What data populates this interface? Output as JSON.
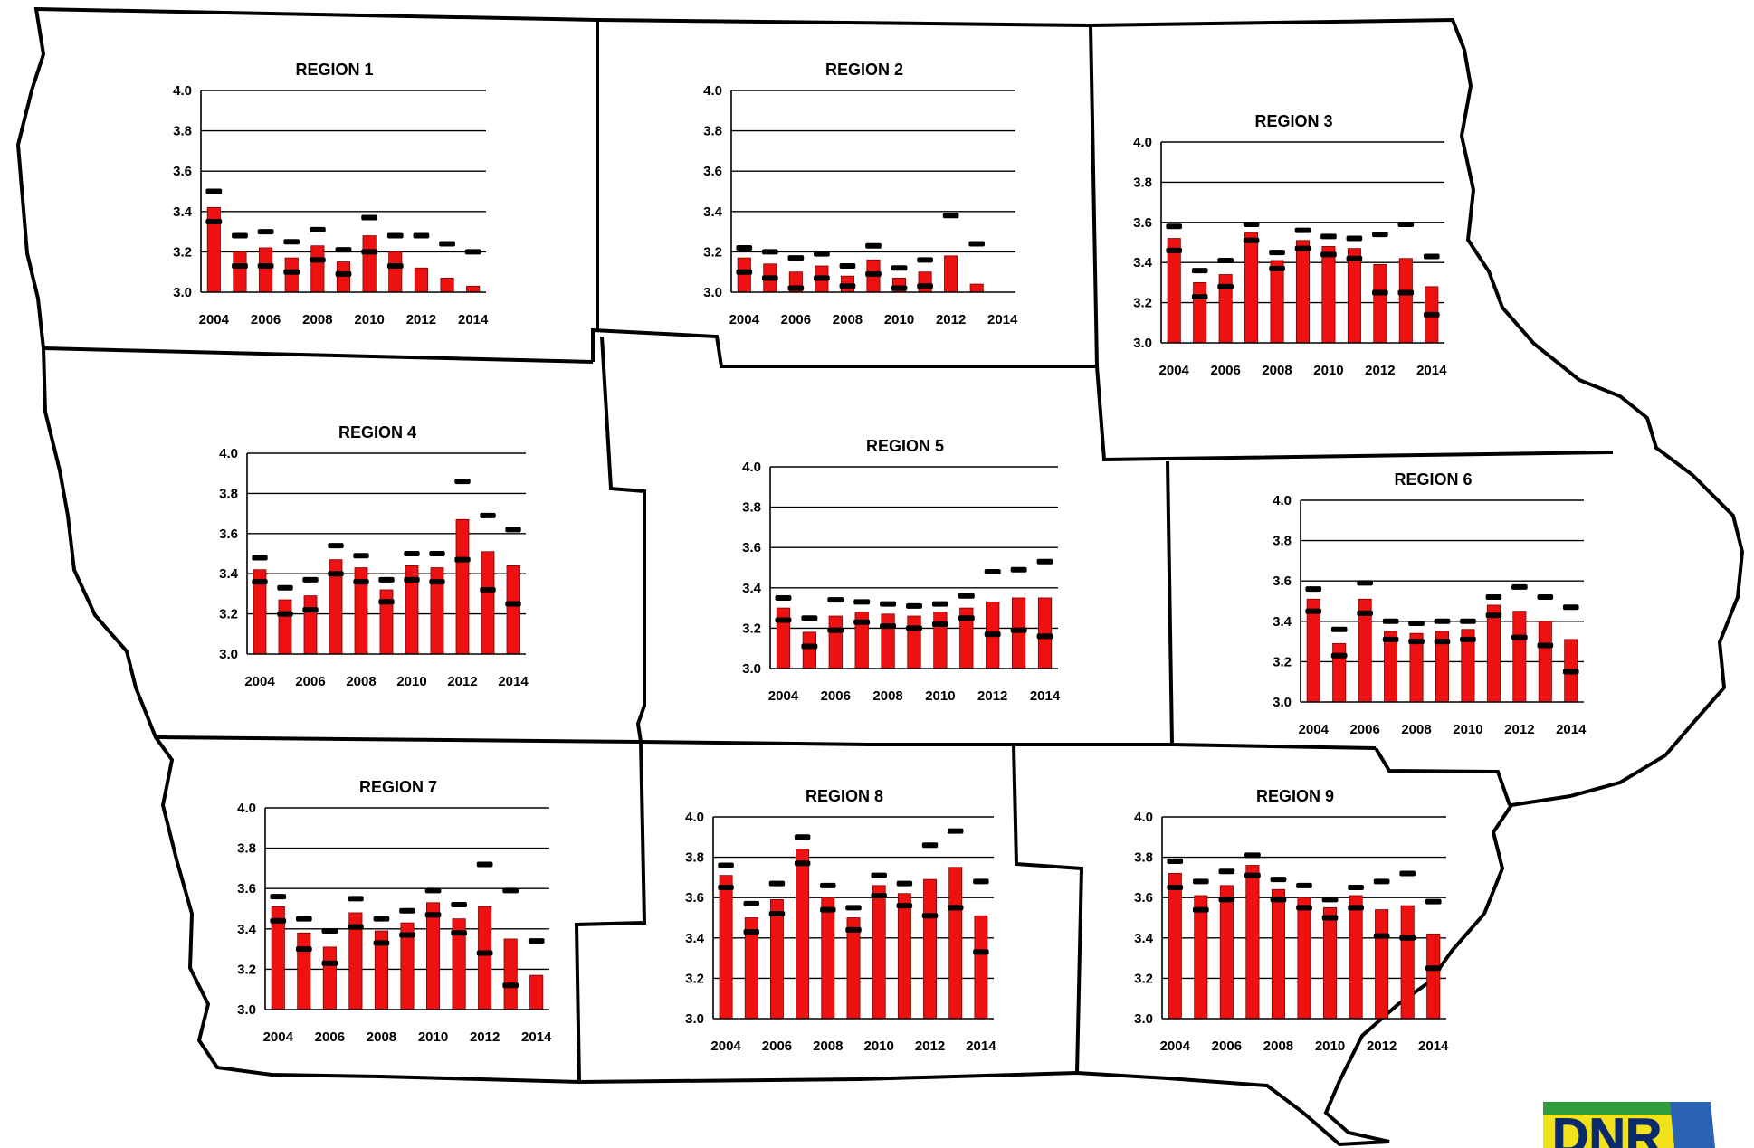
{
  "logo": {
    "text": "DNR",
    "colors": {
      "green": "#2e9e3a",
      "yellow": "#f2e21a",
      "blue": "#2a63b4"
    }
  },
  "colors": {
    "bar": "#ee1111",
    "bar_edge": "#7a0000",
    "marker": "#000000",
    "border": "#000000",
    "grid": "#000000"
  },
  "chart_data": [
    {
      "type": "bar",
      "title": "REGION 1",
      "categories": [
        "2004",
        "2005",
        "2006",
        "2007",
        "2008",
        "2009",
        "2010",
        "2011",
        "2012",
        "2013",
        "2014"
      ],
      "series": [
        {
          "kind": "bar",
          "values": [
            3.42,
            3.2,
            3.22,
            3.17,
            3.23,
            3.15,
            3.28,
            3.2,
            3.12,
            3.07,
            3.03
          ]
        },
        {
          "kind": "upper-marker",
          "values": [
            3.5,
            3.28,
            3.3,
            3.25,
            3.31,
            3.21,
            3.37,
            3.28,
            3.28,
            3.24,
            3.2
          ]
        },
        {
          "kind": "lower-marker",
          "values": [
            3.35,
            3.13,
            3.13,
            3.1,
            3.16,
            3.09,
            3.2,
            3.13,
            null,
            null,
            null
          ]
        }
      ],
      "ylim": [
        3.0,
        4.0
      ],
      "yticks": [
        "3.0",
        "3.2",
        "3.4",
        "3.6",
        "3.8",
        "4.0"
      ],
      "xticks": [
        "2004",
        "2006",
        "2008",
        "2010",
        "2012",
        "2014"
      ],
      "grid": true
    },
    {
      "type": "bar",
      "title": "REGION 2",
      "categories": [
        "2004",
        "2005",
        "2006",
        "2007",
        "2008",
        "2009",
        "2010",
        "2011",
        "2012",
        "2013",
        "2014"
      ],
      "series": [
        {
          "kind": "bar",
          "values": [
            3.17,
            3.14,
            3.1,
            3.13,
            3.08,
            3.16,
            3.07,
            3.1,
            3.18,
            3.04,
            null
          ]
        },
        {
          "kind": "upper-marker",
          "values": [
            3.22,
            3.2,
            3.17,
            3.19,
            3.13,
            3.23,
            3.12,
            3.16,
            3.38,
            3.24,
            null
          ]
        },
        {
          "kind": "lower-marker",
          "values": [
            3.1,
            3.07,
            3.02,
            3.07,
            3.03,
            3.09,
            3.02,
            3.03,
            null,
            null,
            null
          ]
        }
      ],
      "ylim": [
        3.0,
        4.0
      ],
      "yticks": [
        "3.0",
        "3.2",
        "3.4",
        "3.6",
        "3.8",
        "4.0"
      ],
      "xticks": [
        "2004",
        "2006",
        "2008",
        "2010",
        "2012",
        "2014"
      ],
      "grid": true
    },
    {
      "type": "bar",
      "title": "REGION 3",
      "categories": [
        "2004",
        "2005",
        "2006",
        "2007",
        "2008",
        "2009",
        "2010",
        "2011",
        "2012",
        "2013",
        "2014"
      ],
      "series": [
        {
          "kind": "bar",
          "values": [
            3.52,
            3.3,
            3.34,
            3.55,
            3.41,
            3.51,
            3.48,
            3.47,
            3.39,
            3.42,
            3.28
          ]
        },
        {
          "kind": "upper-marker",
          "values": [
            3.58,
            3.36,
            3.41,
            3.59,
            3.45,
            3.56,
            3.53,
            3.52,
            3.54,
            3.59,
            3.43
          ]
        },
        {
          "kind": "lower-marker",
          "values": [
            3.46,
            3.23,
            3.28,
            3.51,
            3.37,
            3.47,
            3.44,
            3.42,
            3.25,
            3.25,
            3.14
          ]
        }
      ],
      "ylim": [
        3.0,
        4.0
      ],
      "yticks": [
        "3.0",
        "3.2",
        "3.4",
        "3.6",
        "3.8",
        "4.0"
      ],
      "xticks": [
        "2004",
        "2006",
        "2008",
        "2010",
        "2012",
        "2014"
      ],
      "grid": true
    },
    {
      "type": "bar",
      "title": "REGION 4",
      "categories": [
        "2004",
        "2005",
        "2006",
        "2007",
        "2008",
        "2009",
        "2010",
        "2011",
        "2012",
        "2013",
        "2014"
      ],
      "series": [
        {
          "kind": "bar",
          "values": [
            3.42,
            3.27,
            3.29,
            3.47,
            3.43,
            3.32,
            3.44,
            3.43,
            3.67,
            3.51,
            3.44
          ]
        },
        {
          "kind": "upper-marker",
          "values": [
            3.48,
            3.33,
            3.37,
            3.54,
            3.49,
            3.37,
            3.5,
            3.5,
            3.86,
            3.69,
            3.62
          ]
        },
        {
          "kind": "lower-marker",
          "values": [
            3.36,
            3.2,
            3.22,
            3.4,
            3.36,
            3.26,
            3.37,
            3.36,
            3.47,
            3.32,
            3.25
          ]
        }
      ],
      "ylim": [
        3.0,
        4.0
      ],
      "yticks": [
        "3.0",
        "3.2",
        "3.4",
        "3.6",
        "3.8",
        "4.0"
      ],
      "xticks": [
        "2004",
        "2006",
        "2008",
        "2010",
        "2012",
        "2014"
      ],
      "grid": true
    },
    {
      "type": "bar",
      "title": "REGION 5",
      "categories": [
        "2004",
        "2005",
        "2006",
        "2007",
        "2008",
        "2009",
        "2010",
        "2011",
        "2012",
        "2013",
        "2014"
      ],
      "series": [
        {
          "kind": "bar",
          "values": [
            3.3,
            3.18,
            3.26,
            3.28,
            3.27,
            3.26,
            3.28,
            3.3,
            3.33,
            3.35,
            3.35
          ]
        },
        {
          "kind": "upper-marker",
          "values": [
            3.35,
            3.25,
            3.34,
            3.33,
            3.32,
            3.31,
            3.32,
            3.36,
            3.48,
            3.49,
            3.53
          ]
        },
        {
          "kind": "lower-marker",
          "values": [
            3.24,
            3.11,
            3.19,
            3.23,
            3.21,
            3.2,
            3.22,
            3.25,
            3.17,
            3.19,
            3.16
          ]
        }
      ],
      "ylim": [
        3.0,
        4.0
      ],
      "yticks": [
        "3.0",
        "3.2",
        "3.4",
        "3.6",
        "3.8",
        "4.0"
      ],
      "xticks": [
        "2004",
        "2006",
        "2008",
        "2010",
        "2012",
        "2014"
      ],
      "grid": true
    },
    {
      "type": "bar",
      "title": "REGION 6",
      "categories": [
        "2004",
        "2005",
        "2006",
        "2007",
        "2008",
        "2009",
        "2010",
        "2011",
        "2012",
        "2013",
        "2014"
      ],
      "series": [
        {
          "kind": "bar",
          "values": [
            3.51,
            3.29,
            3.51,
            3.35,
            3.34,
            3.35,
            3.36,
            3.48,
            3.45,
            3.4,
            3.31
          ]
        },
        {
          "kind": "upper-marker",
          "values": [
            3.56,
            3.36,
            3.59,
            3.4,
            3.39,
            3.4,
            3.4,
            3.52,
            3.57,
            3.52,
            3.47
          ]
        },
        {
          "kind": "lower-marker",
          "values": [
            3.45,
            3.23,
            3.44,
            3.31,
            3.3,
            3.3,
            3.31,
            3.43,
            3.32,
            3.28,
            3.15
          ]
        }
      ],
      "ylim": [
        3.0,
        4.0
      ],
      "yticks": [
        "3.0",
        "3.2",
        "3.4",
        "3.6",
        "3.8",
        "4.0"
      ],
      "xticks": [
        "2004",
        "2006",
        "2008",
        "2010",
        "2012",
        "2014"
      ],
      "grid": true
    },
    {
      "type": "bar",
      "title": "REGION 7",
      "categories": [
        "2004",
        "2005",
        "2006",
        "2007",
        "2008",
        "2009",
        "2010",
        "2011",
        "2012",
        "2013",
        "2014"
      ],
      "series": [
        {
          "kind": "bar",
          "values": [
            3.51,
            3.38,
            3.31,
            3.48,
            3.39,
            3.43,
            3.53,
            3.45,
            3.51,
            3.35,
            3.17
          ]
        },
        {
          "kind": "upper-marker",
          "values": [
            3.56,
            3.45,
            3.39,
            3.55,
            3.45,
            3.49,
            3.59,
            3.52,
            3.72,
            3.59,
            3.34
          ]
        },
        {
          "kind": "lower-marker",
          "values": [
            3.44,
            3.3,
            3.23,
            3.41,
            3.33,
            3.37,
            3.47,
            3.38,
            3.28,
            3.12,
            null
          ]
        }
      ],
      "ylim": [
        3.0,
        4.0
      ],
      "yticks": [
        "3.0",
        "3.2",
        "3.4",
        "3.6",
        "3.8",
        "4.0"
      ],
      "xticks": [
        "2004",
        "2006",
        "2008",
        "2010",
        "2012",
        "2014"
      ],
      "grid": true
    },
    {
      "type": "bar",
      "title": "REGION 8",
      "categories": [
        "2004",
        "2005",
        "2006",
        "2007",
        "2008",
        "2009",
        "2010",
        "2011",
        "2012",
        "2013",
        "2014"
      ],
      "series": [
        {
          "kind": "bar",
          "values": [
            3.71,
            3.5,
            3.59,
            3.84,
            3.6,
            3.5,
            3.66,
            3.62,
            3.69,
            3.75,
            3.51
          ]
        },
        {
          "kind": "upper-marker",
          "values": [
            3.76,
            3.57,
            3.67,
            3.9,
            3.66,
            3.55,
            3.71,
            3.67,
            3.86,
            3.93,
            3.68
          ]
        },
        {
          "kind": "lower-marker",
          "values": [
            3.65,
            3.43,
            3.52,
            3.77,
            3.54,
            3.44,
            3.61,
            3.56,
            3.51,
            3.55,
            3.33
          ]
        }
      ],
      "ylim": [
        3.0,
        4.0
      ],
      "yticks": [
        "3.0",
        "3.2",
        "3.4",
        "3.6",
        "3.8",
        "4.0"
      ],
      "xticks": [
        "2004",
        "2006",
        "2008",
        "2010",
        "2012",
        "2014"
      ],
      "grid": true
    },
    {
      "type": "bar",
      "title": "REGION 9",
      "categories": [
        "2004",
        "2005",
        "2006",
        "2007",
        "2008",
        "2009",
        "2010",
        "2011",
        "2012",
        "2013",
        "2014"
      ],
      "series": [
        {
          "kind": "bar",
          "values": [
            3.72,
            3.61,
            3.66,
            3.76,
            3.64,
            3.6,
            3.55,
            3.61,
            3.54,
            3.56,
            3.42
          ]
        },
        {
          "kind": "upper-marker",
          "values": [
            3.78,
            3.68,
            3.73,
            3.81,
            3.69,
            3.66,
            3.59,
            3.65,
            3.68,
            3.72,
            3.58
          ]
        },
        {
          "kind": "lower-marker",
          "values": [
            3.65,
            3.54,
            3.59,
            3.71,
            3.59,
            3.55,
            3.5,
            3.55,
            3.41,
            3.4,
            3.25
          ]
        }
      ],
      "ylim": [
        3.0,
        4.0
      ],
      "yticks": [
        "3.0",
        "3.2",
        "3.4",
        "3.6",
        "3.8",
        "4.0"
      ],
      "xticks": [
        "2004",
        "2006",
        "2008",
        "2010",
        "2012",
        "2014"
      ],
      "grid": true
    }
  ]
}
